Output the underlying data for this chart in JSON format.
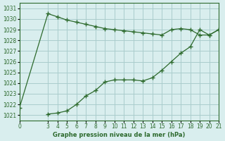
{
  "line1_x": [
    0,
    3,
    4,
    5,
    6,
    7,
    8,
    9,
    10,
    11,
    12,
    13,
    14,
    15,
    16,
    17,
    18,
    19,
    20,
    21
  ],
  "line1_y": [
    1021.7,
    1030.5,
    1030.2,
    1029.9,
    1029.7,
    1029.5,
    1029.3,
    1029.1,
    1029.0,
    1028.9,
    1028.8,
    1028.7,
    1028.6,
    1028.5,
    1029.0,
    1029.1,
    1029.0,
    1028.5,
    1028.5,
    1029.0
  ],
  "line2_x": [
    3,
    4,
    5,
    6,
    7,
    8,
    9,
    10,
    11,
    12,
    13,
    14,
    15,
    16,
    17,
    18,
    19,
    20,
    21
  ],
  "line2_y": [
    1021.1,
    1021.2,
    1021.4,
    1022.0,
    1022.8,
    1023.3,
    1024.1,
    1024.3,
    1024.3,
    1024.3,
    1024.2,
    1024.5,
    1025.2,
    1026.0,
    1026.8,
    1027.4,
    1029.0,
    1028.5,
    1029.0
  ],
  "line_color": "#2d6a2d",
  "bg_color": "#d9eeee",
  "grid_color": "#aacccc",
  "xlabel": "Graphe pression niveau de la mer (hPa)",
  "yticks": [
    1021,
    1022,
    1023,
    1024,
    1025,
    1026,
    1027,
    1028,
    1029,
    1030,
    1031
  ],
  "xticks": [
    0,
    3,
    4,
    5,
    6,
    7,
    8,
    9,
    10,
    11,
    12,
    13,
    14,
    15,
    16,
    17,
    18,
    19,
    20,
    21
  ],
  "xtick_labels": [
    "0",
    "3",
    "4",
    "5",
    "6",
    "7",
    "8",
    "9",
    "10",
    "11",
    "12",
    "13",
    "14",
    "15",
    "16",
    "17",
    "18",
    "19",
    "20",
    "21"
  ],
  "xlim": [
    0,
    21
  ],
  "ylim": [
    1020.5,
    1031.5
  ],
  "marker": "+"
}
